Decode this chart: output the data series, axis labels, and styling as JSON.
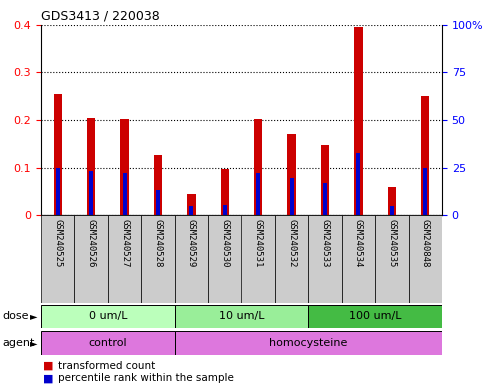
{
  "title": "GDS3413 / 220038",
  "samples": [
    "GSM240525",
    "GSM240526",
    "GSM240527",
    "GSM240528",
    "GSM240529",
    "GSM240530",
    "GSM240531",
    "GSM240532",
    "GSM240533",
    "GSM240534",
    "GSM240535",
    "GSM240848"
  ],
  "transformed_count": [
    0.255,
    0.205,
    0.202,
    0.127,
    0.045,
    0.097,
    0.202,
    0.17,
    0.148,
    0.395,
    0.06,
    0.25
  ],
  "percentile_rank_scaled": [
    0.1,
    0.092,
    0.088,
    0.052,
    0.018,
    0.022,
    0.088,
    0.078,
    0.068,
    0.13,
    0.018,
    0.1
  ],
  "ylim_left": [
    0,
    0.4
  ],
  "ylim_right": [
    0,
    100
  ],
  "yticks_left": [
    0,
    0.1,
    0.2,
    0.3,
    0.4
  ],
  "ytick_labels_left": [
    "0",
    "0.1",
    "0.2",
    "0.3",
    "0.4"
  ],
  "yticks_right": [
    0,
    25,
    50,
    75,
    100
  ],
  "ytick_labels_right": [
    "0",
    "25",
    "50",
    "75",
    "100%"
  ],
  "bar_color": "#cc0000",
  "percentile_color": "#0000cc",
  "dose_colors": [
    "#bbffbb",
    "#99ee99",
    "#44bb44"
  ],
  "dose_groups": [
    {
      "label": "0 um/L",
      "start": 0,
      "end": 4
    },
    {
      "label": "10 um/L",
      "start": 4,
      "end": 8
    },
    {
      "label": "100 um/L",
      "start": 8,
      "end": 12
    }
  ],
  "agent_color": "#dd77dd",
  "agent_groups": [
    {
      "label": "control",
      "start": 0,
      "end": 4
    },
    {
      "label": "homocysteine",
      "start": 4,
      "end": 12
    }
  ],
  "legend_red_label": "transformed count",
  "legend_blue_label": "percentile rank within the sample",
  "dose_label": "dose",
  "agent_label": "agent",
  "bar_width": 0.25,
  "blue_bar_width": 0.12
}
